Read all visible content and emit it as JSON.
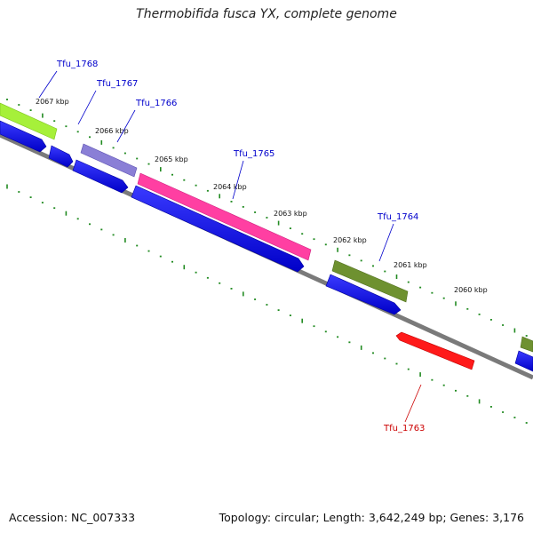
{
  "title": "Thermobifida fusca YX, complete genome",
  "footer": {
    "accession": "Accession: NC_007333",
    "topology": "Topology: circular; Length: 3,642,249 bp; Genes: 3,176"
  },
  "kbp_ticks": [
    "2067 kbp",
    "2066 kbp",
    "2065 kbp",
    "2064 kbp",
    "2063 kbp",
    "2062 kbp",
    "2061 kbp",
    "2060 kbp"
  ],
  "genes": [
    {
      "name": "Tfu_1768",
      "color": "#0000cc",
      "feature_color": "#99ee33"
    },
    {
      "name": "Tfu_1767",
      "color": "#0000cc",
      "feature_color": "#0000ee"
    },
    {
      "name": "Tfu_1766",
      "color": "#0000cc",
      "feature_color": "#7766cc"
    },
    {
      "name": "Tfu_1765",
      "color": "#0000cc",
      "feature_color": "#ff3399"
    },
    {
      "name": "Tfu_1764",
      "color": "#0000cc",
      "feature_color": "#6b8e23"
    },
    {
      "name": "Tfu_1763",
      "color": "#cc0000",
      "feature_color": "#ff0000"
    }
  ],
  "colors": {
    "backbone": "#777777",
    "cds": "#0000ee",
    "tick": "#228b22"
  }
}
